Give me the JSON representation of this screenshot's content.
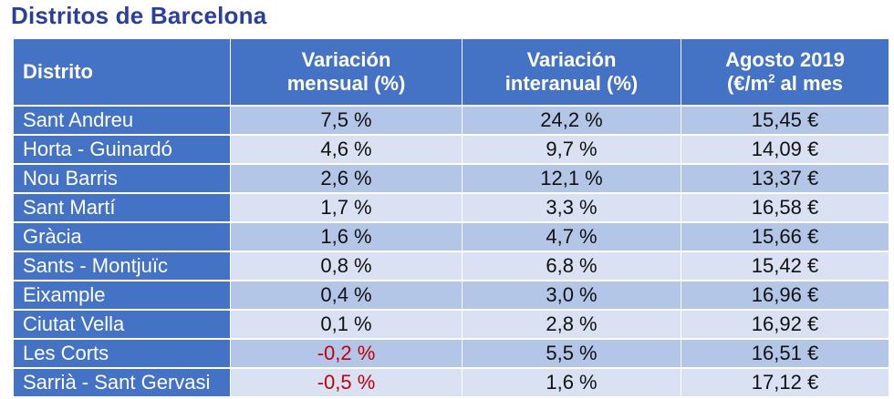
{
  "title": "Distritos de Barcelona",
  "header": {
    "col1": "Distrito",
    "col2_line1": "Variación",
    "col2_line2": "mensual (%)",
    "col3_line1": "Variación",
    "col3_line2": "interanual (%)",
    "col4_line1": "Agosto 2019",
    "col4_line2_pre": "(€/m",
    "col4_line2_sup": "2",
    "col4_line2_post": " al mes"
  },
  "colors": {
    "title": "#2a3f9a",
    "header_bg": "#4472c4",
    "row_dark": "#b4c6e7",
    "row_light": "#d9e1f2",
    "negative": "#c0000d"
  },
  "rows": [
    {
      "district": "Sant Andreu",
      "monthly": "7,5 %",
      "yearly": "24,2 %",
      "price": "15,45 €"
    },
    {
      "district": "Horta - Guinardó",
      "monthly": "4,6 %",
      "yearly": "9,7 %",
      "price": "14,09 €"
    },
    {
      "district": "Nou Barris",
      "monthly": "2,6 %",
      "yearly": "12,1 %",
      "price": "13,37 €"
    },
    {
      "district": "Sant Martí",
      "monthly": "1,7 %",
      "yearly": "3,3 %",
      "price": "16,58 €"
    },
    {
      "district": "Gràcia",
      "monthly": "1,6 %",
      "yearly": "4,7 %",
      "price": "15,66 €"
    },
    {
      "district": "Sants - Montjuïc",
      "monthly": "0,8 %",
      "yearly": "6,8 %",
      "price": "15,42 €"
    },
    {
      "district": "Eixample",
      "monthly": "0,4 %",
      "yearly": "3,0 %",
      "price": "16,96 €"
    },
    {
      "district": "Ciutat Vella",
      "monthly": "0,1 %",
      "yearly": "2,8 %",
      "price": "16,92 €"
    },
    {
      "district": "Les Corts",
      "monthly": "-0,2 %",
      "yearly": "5,5 %",
      "price": "16,51 €"
    },
    {
      "district": "Sarrià - Sant Gervasi",
      "monthly": "-0,5 %",
      "yearly": "1,6 %",
      "price": "17,12 €"
    }
  ]
}
